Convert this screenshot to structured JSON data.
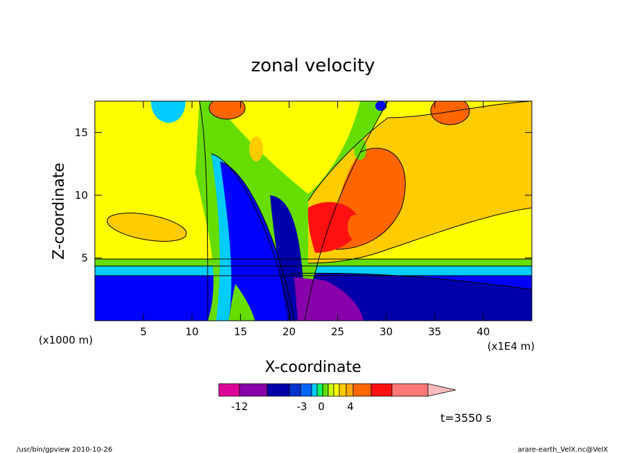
{
  "chart_data": {
    "type": "heatmap",
    "title": "zonal velocity",
    "xlabel": "X-coordinate",
    "ylabel": "Z-coordinate",
    "x_units_left": "(x1000 m)",
    "x_units_right": "(x1E4 m)",
    "xlim": [
      0,
      45
    ],
    "ylim": [
      0,
      17.5
    ],
    "x_ticks": [
      "5",
      "10",
      "15",
      "20",
      "25",
      "30",
      "35",
      "40"
    ],
    "x_tick_values": [
      5,
      10,
      15,
      20,
      25,
      30,
      35,
      40
    ],
    "y_ticks": [
      "5",
      "10",
      "15"
    ],
    "y_tick_values": [
      5,
      10,
      15
    ],
    "time_label": "t=3550 s",
    "colorbar": {
      "colors": [
        "#dd0099",
        "#8800aa",
        "#0000aa",
        "#0033cc",
        "#0066ff",
        "#00ccff",
        "#00ff66",
        "#66dd00",
        "#ccff00",
        "#ffff00",
        "#ffcc00",
        "#ffaa00",
        "#ff6600",
        "#ff1111",
        "#ff7777",
        "#ffbbbb"
      ],
      "tick_labels": [
        "-12",
        "-3",
        "0",
        "4"
      ]
    }
  },
  "footer": {
    "left": "/usr/bin/gpview   2010-10-26",
    "right": "arare-earth_VelX.nc@VelX"
  }
}
